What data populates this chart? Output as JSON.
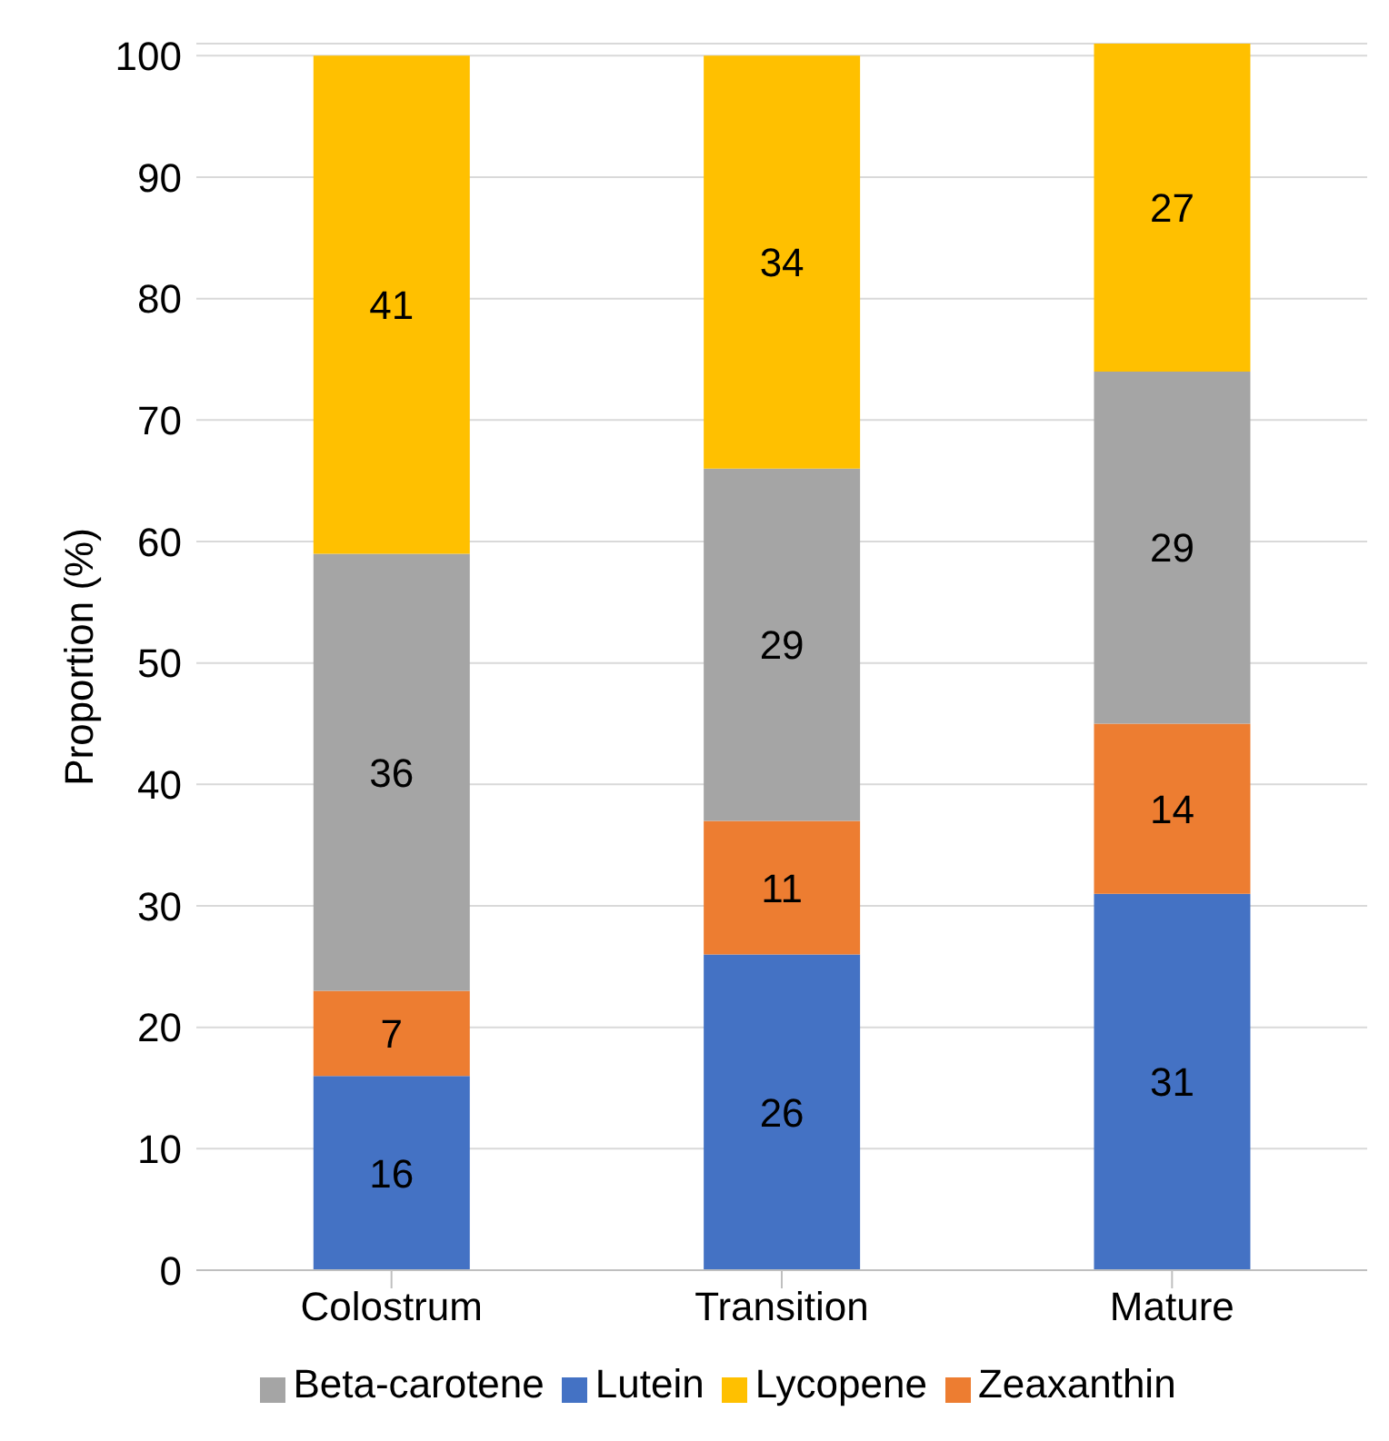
{
  "chart_data": {
    "type": "bar",
    "stacked": true,
    "ylabel": "Proportion (%)",
    "categories": [
      "Colostrum",
      "Transition",
      "Mature"
    ],
    "series": [
      {
        "name": "Lutein",
        "color": "#4472c4",
        "values": [
          16,
          26,
          31
        ]
      },
      {
        "name": "Zeaxanthin",
        "color": "#ed7d31",
        "values": [
          7,
          11,
          14
        ]
      },
      {
        "name": "Beta-carotene",
        "color": "#a5a5a5",
        "values": [
          36,
          29,
          29
        ]
      },
      {
        "name": "Lycopene",
        "color": "#ffc000",
        "values": [
          41,
          34,
          27
        ]
      }
    ],
    "ylim": [
      0,
      101
    ],
    "yticks": [
      0,
      10,
      20,
      30,
      40,
      50,
      60,
      70,
      80,
      90,
      100
    ],
    "grid": "y",
    "legend": "bottom",
    "data_labels": true
  }
}
